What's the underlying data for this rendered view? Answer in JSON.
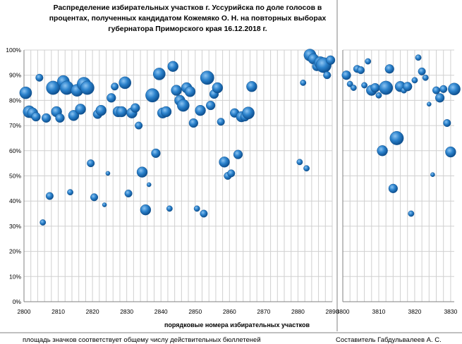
{
  "title_lines": [
    "Распределение избирательных участков г. Уссурийска  по доле голосов в",
    "процентах,  полученных кандидатом Кожемяко О. Н. на повторных выборах",
    "губернатора Приморского  края 16.12.2018  г."
  ],
  "xlabel": "порядковые номера избирательных участков",
  "footer_left": "площадь значков соответствует общему числу действительных бюллетеней",
  "footer_right": "Составитель Габдульвалеев А. С.",
  "colors": {
    "bubble": "#1f74be",
    "bubble_light": "#6fb2ea",
    "grid": "#d0d0d0",
    "axis": "#808080"
  },
  "chart_data": [
    {
      "type": "scatter",
      "title": "",
      "xlabel": "порядковые номера избирательных участков",
      "ylabel": "",
      "xlim": [
        2800,
        2890
      ],
      "ylim": [
        0,
        100
      ],
      "x_ticks": [
        2800,
        2810,
        2820,
        2830,
        2840,
        2850,
        2860,
        2870,
        2880,
        2890
      ],
      "y_ticks": [
        "0%",
        "10%",
        "20%",
        "30%",
        "40%",
        "50%",
        "60%",
        "70%",
        "80%",
        "90%",
        "100%"
      ],
      "grid": true,
      "points": [
        {
          "x": 2800.5,
          "y": 83,
          "s": 3
        },
        {
          "x": 2801.5,
          "y": 75.5,
          "s": 3
        },
        {
          "x": 2802.5,
          "y": 75,
          "s": 2.5
        },
        {
          "x": 2803.5,
          "y": 73.5,
          "s": 2
        },
        {
          "x": 2804.5,
          "y": 89,
          "s": 1.5
        },
        {
          "x": 2805.5,
          "y": 31.5,
          "s": 1
        },
        {
          "x": 2806.5,
          "y": 73,
          "s": 2
        },
        {
          "x": 2807.5,
          "y": 42,
          "s": 1.5
        },
        {
          "x": 2808.5,
          "y": 85,
          "s": 3.5
        },
        {
          "x": 2809.5,
          "y": 75.5,
          "s": 2.5
        },
        {
          "x": 2810.5,
          "y": 73,
          "s": 2
        },
        {
          "x": 2811.5,
          "y": 87.5,
          "s": 3
        },
        {
          "x": 2812.5,
          "y": 85,
          "s": 3.5
        },
        {
          "x": 2813.5,
          "y": 43.5,
          "s": 1
        },
        {
          "x": 2814.5,
          "y": 74,
          "s": 2.5
        },
        {
          "x": 2815.5,
          "y": 84,
          "s": 3
        },
        {
          "x": 2816.5,
          "y": 76.5,
          "s": 2.5
        },
        {
          "x": 2817.5,
          "y": 86.5,
          "s": 3.5
        },
        {
          "x": 2818.5,
          "y": 85,
          "s": 3.5
        },
        {
          "x": 2819.5,
          "y": 55,
          "s": 1.5
        },
        {
          "x": 2820.5,
          "y": 41.5,
          "s": 1.5
        },
        {
          "x": 2821.5,
          "y": 74.5,
          "s": 2
        },
        {
          "x": 2822.5,
          "y": 76,
          "s": 2.5
        },
        {
          "x": 2823.5,
          "y": 38.5,
          "s": 0.5
        },
        {
          "x": 2824.5,
          "y": 51,
          "s": 0.5
        },
        {
          "x": 2825.5,
          "y": 81,
          "s": 2
        },
        {
          "x": 2826.5,
          "y": 85.5,
          "s": 1.5
        },
        {
          "x": 2827.5,
          "y": 75.5,
          "s": 2.5
        },
        {
          "x": 2828.5,
          "y": 75.5,
          "s": 2.5
        },
        {
          "x": 2829.5,
          "y": 87,
          "s": 3
        },
        {
          "x": 2830.5,
          "y": 43,
          "s": 1.5
        },
        {
          "x": 2831.5,
          "y": 75,
          "s": 2.5
        },
        {
          "x": 2832.5,
          "y": 77,
          "s": 2
        },
        {
          "x": 2833.5,
          "y": 70,
          "s": 1.5
        },
        {
          "x": 2834.5,
          "y": 51.5,
          "s": 2.5
        },
        {
          "x": 2835.5,
          "y": 36.5,
          "s": 2.5
        },
        {
          "x": 2836.5,
          "y": 46.5,
          "s": 0.5
        },
        {
          "x": 2837.5,
          "y": 82,
          "s": 3.5
        },
        {
          "x": 2838.5,
          "y": 59,
          "s": 2
        },
        {
          "x": 2839.5,
          "y": 90.5,
          "s": 3
        },
        {
          "x": 2840.5,
          "y": 75,
          "s": 2.5
        },
        {
          "x": 2841.5,
          "y": 75.5,
          "s": 2.5
        },
        {
          "x": 2842.5,
          "y": 37,
          "s": 1
        },
        {
          "x": 2843.5,
          "y": 93.5,
          "s": 2.5
        },
        {
          "x": 2844.5,
          "y": 84,
          "s": 2.5
        },
        {
          "x": 2845.5,
          "y": 80,
          "s": 2.5
        },
        {
          "x": 2846.5,
          "y": 78,
          "s": 3
        },
        {
          "x": 2847.5,
          "y": 85,
          "s": 2.5
        },
        {
          "x": 2848.5,
          "y": 83.5,
          "s": 2.5
        },
        {
          "x": 2849.5,
          "y": 71,
          "s": 2
        },
        {
          "x": 2850.5,
          "y": 37,
          "s": 1
        },
        {
          "x": 2851.5,
          "y": 76,
          "s": 2.5
        },
        {
          "x": 2852.5,
          "y": 35,
          "s": 1.5
        },
        {
          "x": 2853.5,
          "y": 89,
          "s": 3.5
        },
        {
          "x": 2854.5,
          "y": 78,
          "s": 2
        },
        {
          "x": 2855.5,
          "y": 82.5,
          "s": 2
        },
        {
          "x": 2856.5,
          "y": 85,
          "s": 2.5
        },
        {
          "x": 2857.5,
          "y": 71.5,
          "s": 1.5
        },
        {
          "x": 2858.5,
          "y": 55.5,
          "s": 2.5
        },
        {
          "x": 2859.5,
          "y": 50,
          "s": 1.5
        },
        {
          "x": 2860.5,
          "y": 51,
          "s": 1.5
        },
        {
          "x": 2861.5,
          "y": 75,
          "s": 2
        },
        {
          "x": 2862.5,
          "y": 58.5,
          "s": 2
        },
        {
          "x": 2863.5,
          "y": 73.5,
          "s": 2.5
        },
        {
          "x": 2864.5,
          "y": 73.5,
          "s": 2
        },
        {
          "x": 2865.5,
          "y": 75,
          "s": 3
        },
        {
          "x": 2866.5,
          "y": 85.5,
          "s": 2.5
        },
        {
          "x": 2880.5,
          "y": 55.5,
          "s": 1
        },
        {
          "x": 2881.5,
          "y": 87,
          "s": 1
        },
        {
          "x": 2882.5,
          "y": 53,
          "s": 1
        },
        {
          "x": 2883.5,
          "y": 98,
          "s": 3
        },
        {
          "x": 2884.5,
          "y": 96.5,
          "s": 2.5
        },
        {
          "x": 2885.5,
          "y": 93.5,
          "s": 2
        },
        {
          "x": 2886.5,
          "y": 95,
          "s": 3
        },
        {
          "x": 2887.5,
          "y": 94,
          "s": 4
        },
        {
          "x": 2888.5,
          "y": 90,
          "s": 1.5
        },
        {
          "x": 2889.5,
          "y": 96,
          "s": 2
        }
      ]
    },
    {
      "type": "scatter",
      "title": "",
      "xlabel": "",
      "ylabel": "",
      "xlim": [
        3800,
        3831
      ],
      "ylim": [
        0,
        100
      ],
      "x_ticks": [
        3800,
        3810,
        3820,
        3830
      ],
      "grid": true,
      "points": [
        {
          "x": 3801,
          "y": 90,
          "s": 2
        },
        {
          "x": 3802,
          "y": 86.5,
          "s": 1
        },
        {
          "x": 3803,
          "y": 85,
          "s": 1
        },
        {
          "x": 3804,
          "y": 92.5,
          "s": 1.5
        },
        {
          "x": 3805,
          "y": 92,
          "s": 1.5
        },
        {
          "x": 3806,
          "y": 86,
          "s": 1
        },
        {
          "x": 3807,
          "y": 95.5,
          "s": 1
        },
        {
          "x": 3808,
          "y": 84,
          "s": 2.5
        },
        {
          "x": 3809,
          "y": 85,
          "s": 2
        },
        {
          "x": 3810,
          "y": 82,
          "s": 1
        },
        {
          "x": 3811,
          "y": 60,
          "s": 2.5
        },
        {
          "x": 3812,
          "y": 85,
          "s": 3.5
        },
        {
          "x": 3813,
          "y": 92.5,
          "s": 2
        },
        {
          "x": 3814,
          "y": 45,
          "s": 2
        },
        {
          "x": 3815,
          "y": 65,
          "s": 3.5
        },
        {
          "x": 3816,
          "y": 85.5,
          "s": 2.5
        },
        {
          "x": 3817,
          "y": 84,
          "s": 1
        },
        {
          "x": 3818,
          "y": 85.5,
          "s": 2
        },
        {
          "x": 3819,
          "y": 35,
          "s": 1
        },
        {
          "x": 3820,
          "y": 88,
          "s": 1
        },
        {
          "x": 3821,
          "y": 97,
          "s": 1
        },
        {
          "x": 3822,
          "y": 91.5,
          "s": 1.5
        },
        {
          "x": 3823,
          "y": 89,
          "s": 1
        },
        {
          "x": 3824,
          "y": 78.5,
          "s": 0.5
        },
        {
          "x": 3825,
          "y": 50.5,
          "s": 0.5
        },
        {
          "x": 3826,
          "y": 84,
          "s": 1.5
        },
        {
          "x": 3827,
          "y": 81,
          "s": 2
        },
        {
          "x": 3828,
          "y": 84.5,
          "s": 1.5
        },
        {
          "x": 3829,
          "y": 71,
          "s": 1.5
        },
        {
          "x": 3830,
          "y": 59.5,
          "s": 2.5
        },
        {
          "x": 3831,
          "y": 84.5,
          "s": 3
        }
      ]
    }
  ]
}
